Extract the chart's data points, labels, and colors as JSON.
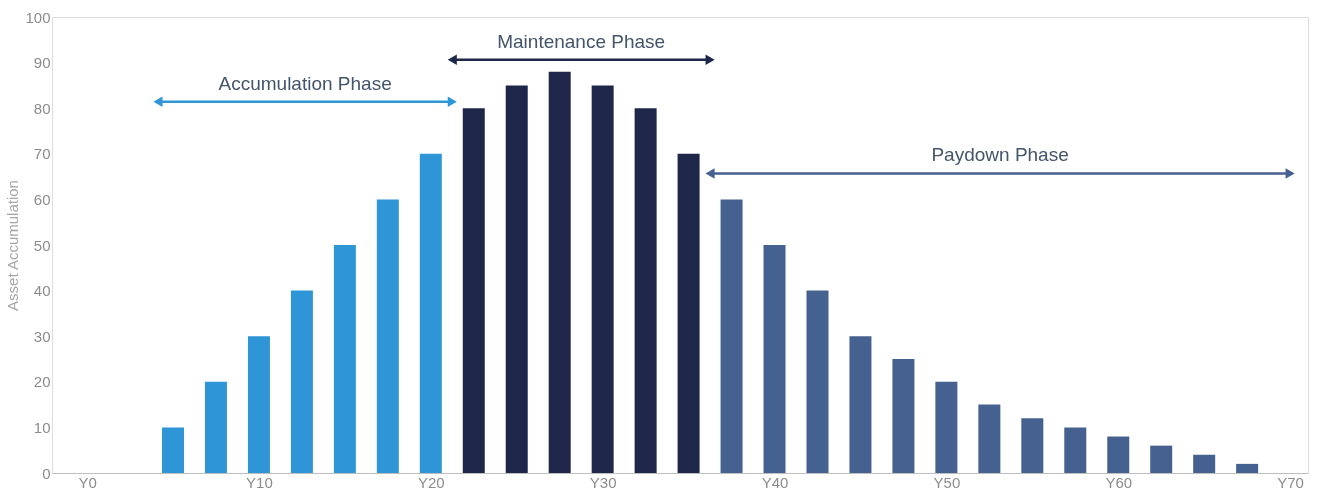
{
  "chart_data": {
    "type": "bar",
    "ylabel": "Asset Accumulation",
    "categories": [
      "Y0",
      null,
      null,
      null,
      "Y10",
      null,
      null,
      null,
      "Y20",
      null,
      null,
      null,
      "Y30",
      null,
      null,
      null,
      "Y40",
      null,
      null,
      null,
      "Y50",
      null,
      null,
      null,
      "Y60",
      null,
      null,
      null,
      "Y70"
    ],
    "ylim": [
      0,
      100
    ],
    "yticks": [
      0,
      10,
      20,
      30,
      40,
      50,
      60,
      70,
      80,
      90,
      100
    ],
    "grid": false,
    "series": [
      {
        "color": "#2e96d6",
        "values": [
          null,
          null,
          10,
          20,
          30,
          40,
          50,
          60,
          70,
          null,
          null,
          null,
          null,
          null,
          null,
          null,
          null,
          null,
          null,
          null,
          null,
          null,
          null,
          null,
          null,
          null,
          null,
          null,
          null
        ]
      },
      {
        "color": "#1e2749",
        "values": [
          null,
          null,
          null,
          null,
          null,
          null,
          null,
          null,
          null,
          80,
          85,
          88,
          85,
          80,
          70,
          null,
          null,
          null,
          null,
          null,
          null,
          null,
          null,
          null,
          null,
          null,
          null,
          null,
          null
        ]
      },
      {
        "color": "#44618f",
        "values": [
          null,
          null,
          null,
          null,
          null,
          null,
          null,
          null,
          null,
          null,
          null,
          null,
          null,
          null,
          null,
          60,
          50,
          40,
          30,
          25,
          20,
          15,
          12,
          10,
          8,
          6,
          4,
          2,
          null
        ]
      }
    ],
    "annotations": [
      "Accumulation Phase",
      "Maintenance Phase",
      "Paydown Phase"
    ]
  }
}
